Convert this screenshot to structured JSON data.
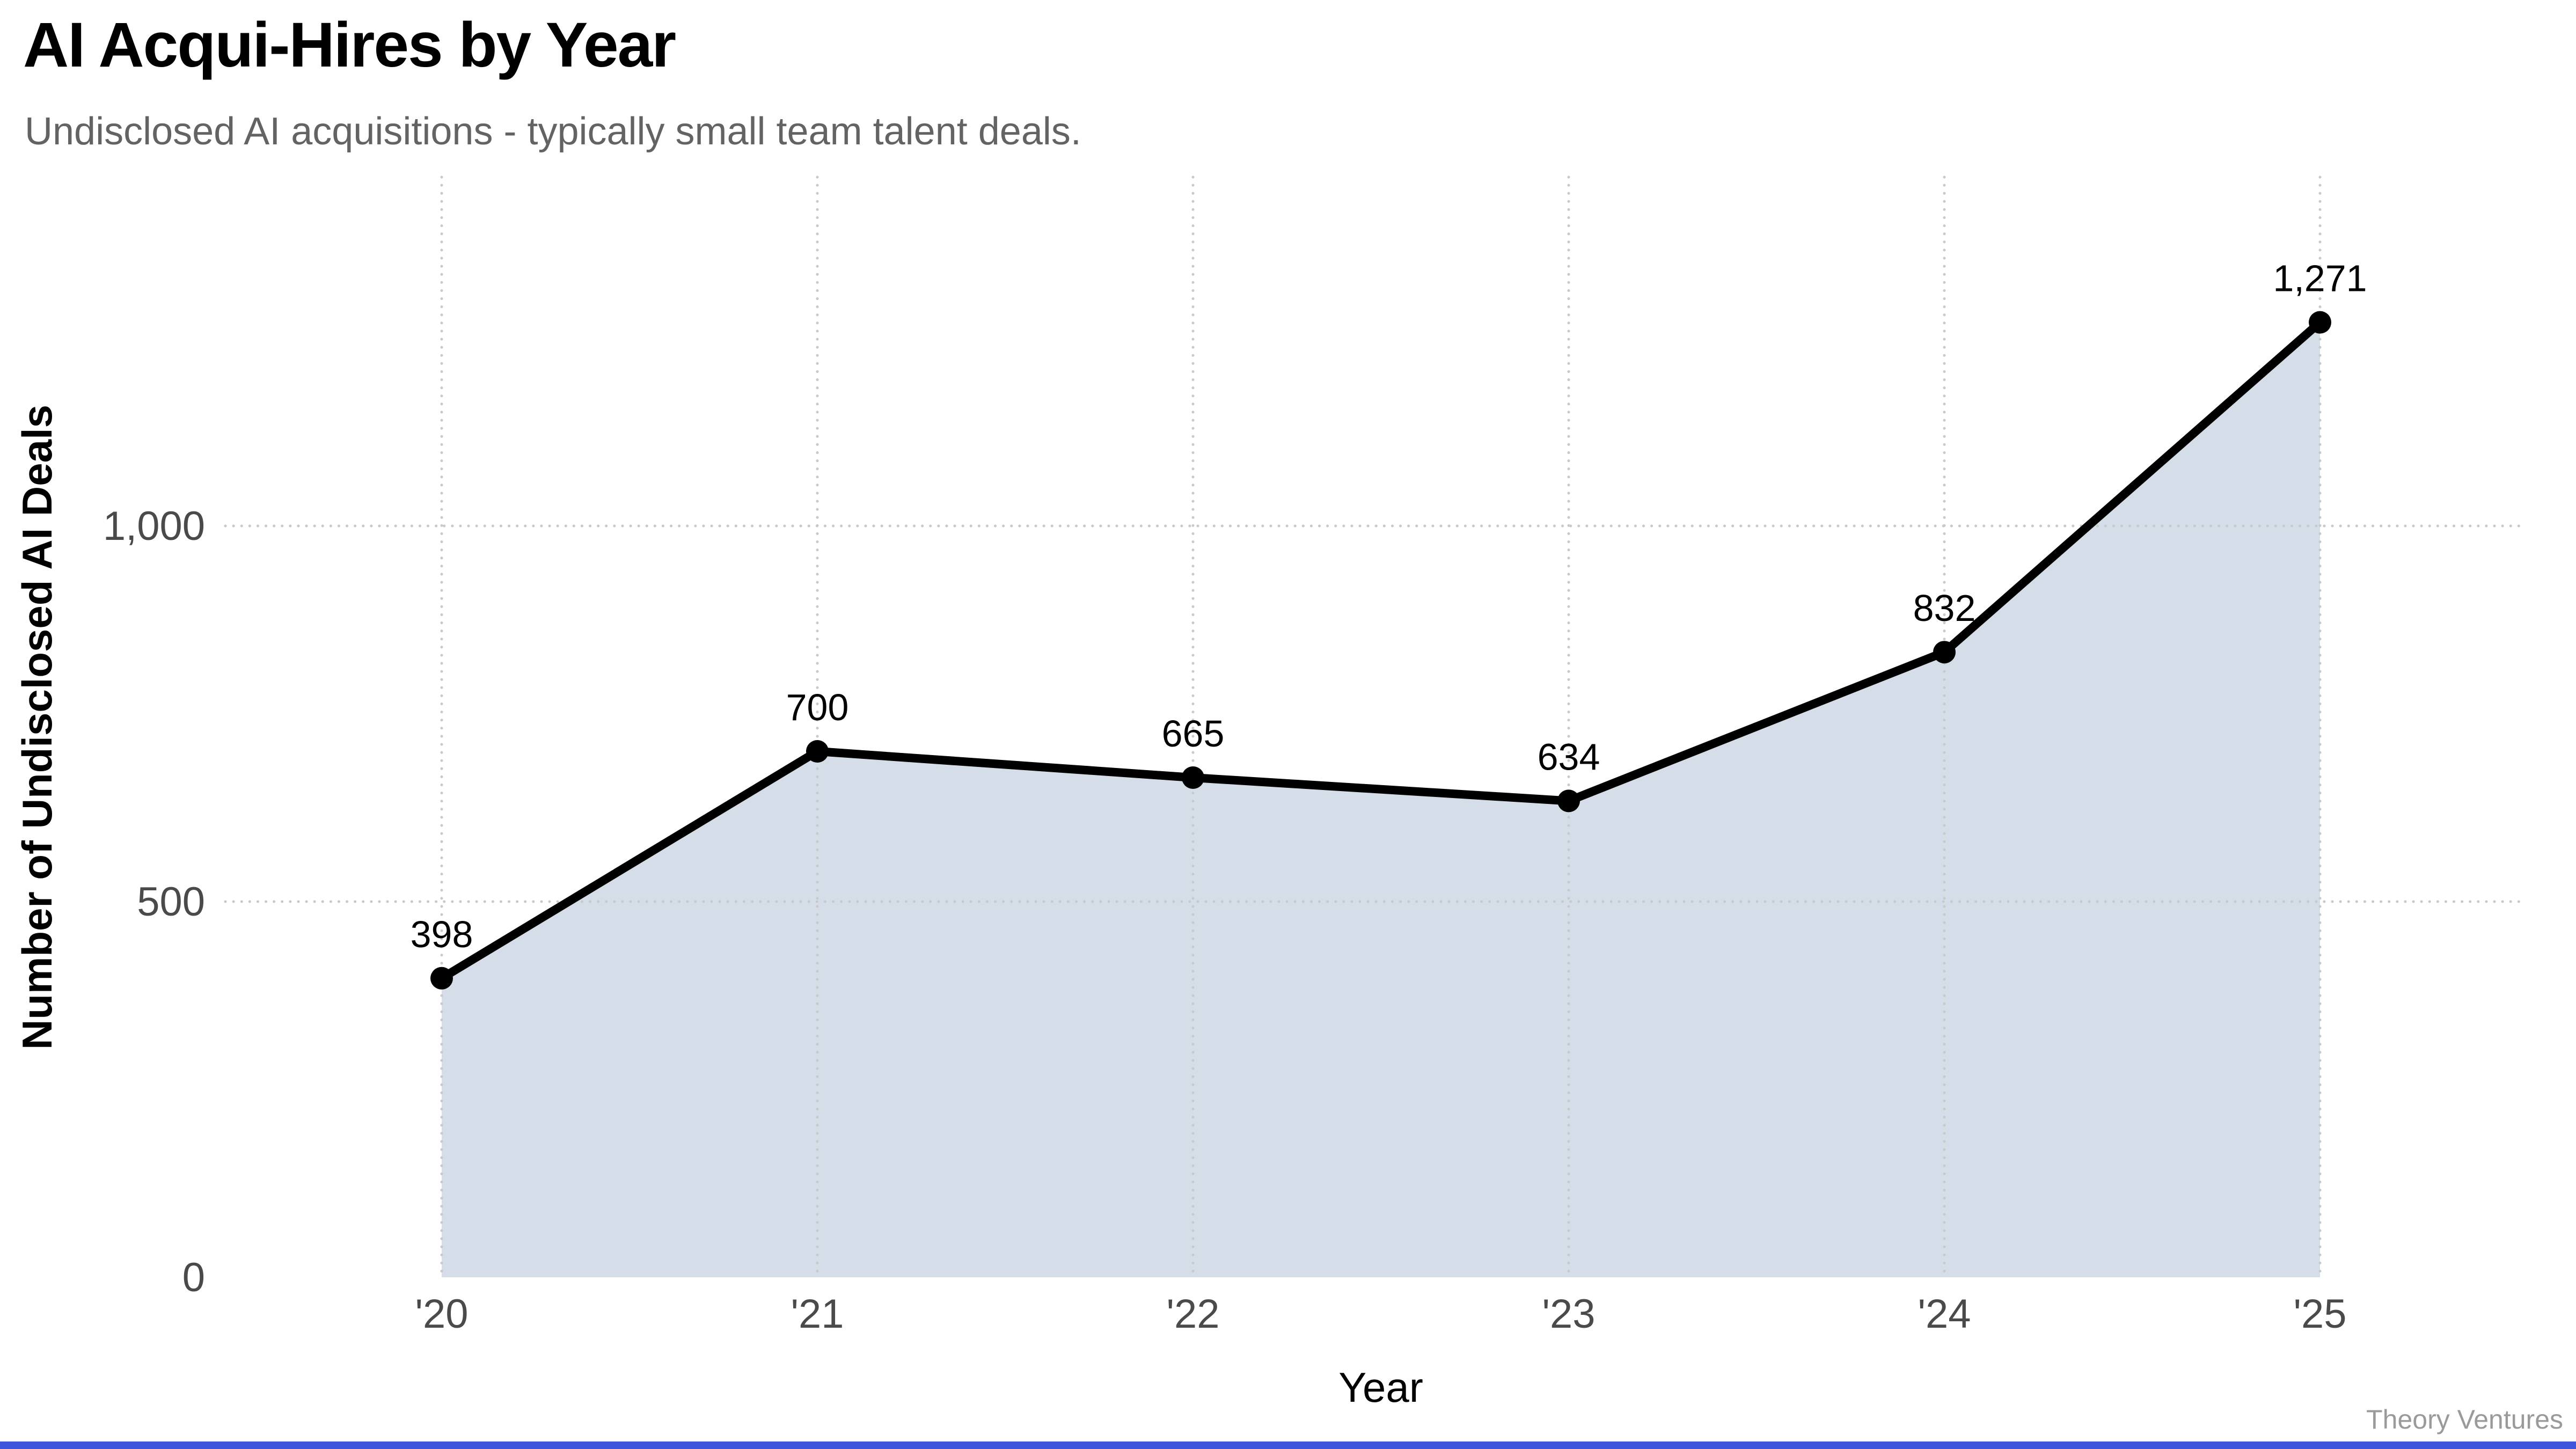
{
  "header": {
    "title": "AI Acqui-Hires by Year",
    "subtitle": "Undisclosed AI acquisitions - typically small team talent deals."
  },
  "chart_data": {
    "type": "area",
    "title": "AI Acqui-Hires by Year",
    "subtitle": "Undisclosed AI acquisitions - typically small team talent deals.",
    "categories": [
      "'20",
      "'21",
      "'22",
      "'23",
      "'24",
      "'25"
    ],
    "values": [
      398,
      700,
      665,
      634,
      832,
      1271
    ],
    "point_labels": [
      "398",
      "700",
      "665",
      "634",
      "832",
      "1,271"
    ],
    "xlabel": "Year",
    "ylabel": "Number of Undisclosed AI Deals",
    "yticks": [
      {
        "value": 0,
        "label": "0"
      },
      {
        "value": 500,
        "label": "500"
      },
      {
        "value": 1000,
        "label": "1,000"
      }
    ],
    "ylim": [
      0,
      1465
    ],
    "grid": "dotted",
    "legend": "none",
    "colors": {
      "line": "#000000",
      "point": "#000000",
      "area_fill": "#D5DEE8",
      "grid_dots": "#c9c9c9",
      "tick_text": "#4a4a4a",
      "data_label_text": "#000000",
      "axis_title_text": "#000000"
    }
  },
  "footer": {
    "credit": "Theory Ventures",
    "accent_bar_color": "#3F55DC"
  }
}
